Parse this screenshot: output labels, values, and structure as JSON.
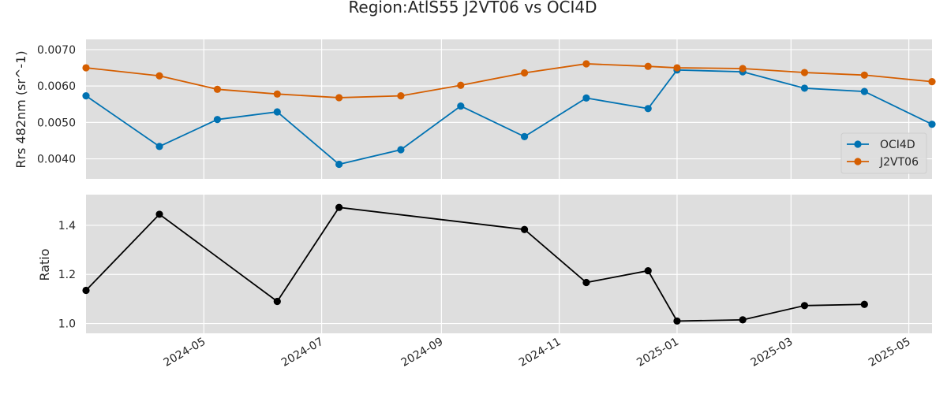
{
  "title": "Region:AtlS55 J2VT06 vs OCI4D",
  "colors": {
    "oci": "#0072b2",
    "j2": "#d55e00",
    "ratio": "#000000",
    "panel_bg": "#dedede",
    "grid": "#ffffff"
  },
  "chart_data": [
    {
      "type": "line",
      "ylabel": "Rrs 482nm (sr^-1)",
      "ylim": [
        0.00345,
        0.00728
      ],
      "yticks": [
        0.004,
        0.005,
        0.006,
        0.007
      ],
      "ytick_labels": [
        "0.0040",
        "0.0050",
        "0.0060",
        "0.0070"
      ],
      "grid": true,
      "legend_position": "center-right",
      "series": [
        {
          "name": "OCI4D",
          "color": "#0072b2",
          "x": [
            "2024-03-01",
            "2024-04-08",
            "2024-05-08",
            "2024-06-08",
            "2024-07-10",
            "2024-08-11",
            "2024-09-11",
            "2024-10-14",
            "2024-11-15",
            "2024-12-17",
            "2025-01-01",
            "2025-02-04",
            "2025-03-08",
            "2025-04-08",
            "2025-05-13"
          ],
          "y": [
            0.00573,
            0.00434,
            0.00508,
            0.00529,
            0.00385,
            0.00425,
            0.00545,
            0.00461,
            0.00567,
            0.00538,
            0.00644,
            0.00639,
            0.00594,
            0.00585,
            0.00495
          ]
        },
        {
          "name": "J2VT06",
          "color": "#d55e00",
          "x": [
            "2024-03-01",
            "2024-04-08",
            "2024-05-08",
            "2024-06-08",
            "2024-07-10",
            "2024-08-11",
            "2024-09-11",
            "2024-10-14",
            "2024-11-15",
            "2024-12-17",
            "2025-01-01",
            "2025-02-04",
            "2025-03-08",
            "2025-04-08",
            "2025-05-13"
          ],
          "y": [
            0.0065,
            0.00628,
            0.00591,
            0.00578,
            0.00568,
            0.00573,
            0.00602,
            0.00636,
            0.00661,
            0.00654,
            0.0065,
            0.00648,
            0.00637,
            0.0063,
            0.00612
          ]
        }
      ]
    },
    {
      "type": "line",
      "ylabel": "Ratio",
      "ylim": [
        0.96,
        1.525
      ],
      "yticks": [
        1.0,
        1.2,
        1.4
      ],
      "ytick_labels": [
        "1.0",
        "1.2",
        "1.4"
      ],
      "grid": true,
      "series": [
        {
          "color": "#000000",
          "x": [
            "2024-03-01",
            "2024-04-08",
            "2024-06-08",
            "2024-07-10",
            "2024-10-14",
            "2024-11-15",
            "2024-12-17",
            "2025-01-01",
            "2025-02-04",
            "2025-03-08",
            "2025-04-08"
          ],
          "y": [
            1.135,
            1.445,
            1.09,
            1.473,
            1.383,
            1.167,
            1.215,
            1.01,
            1.015,
            1.073,
            1.078
          ]
        }
      ]
    }
  ],
  "x_axis": {
    "xlim": [
      "2024-03-01",
      "2025-05-13"
    ],
    "ticks": [
      "2024-05-01",
      "2024-07-01",
      "2024-09-01",
      "2024-11-01",
      "2025-01-01",
      "2025-03-01",
      "2025-05-01"
    ],
    "tick_labels": [
      "2024-05",
      "2024-07",
      "2024-09",
      "2024-11",
      "2025-01",
      "2025-03",
      "2025-05"
    ]
  }
}
